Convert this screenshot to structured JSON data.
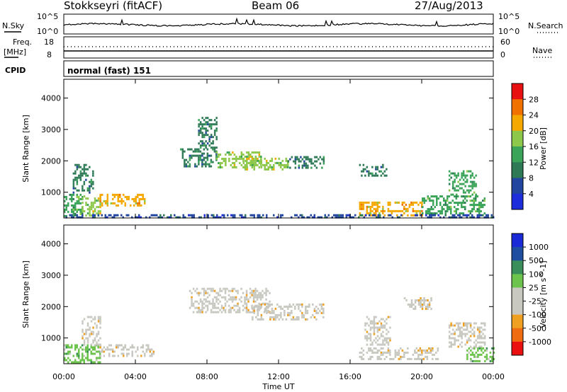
{
  "header": {
    "station": "Stokkseyri (fitACF)",
    "beam": "Beam 06",
    "date": "27/Aug/2013"
  },
  "panels": {
    "nsky_label": "N.Sky",
    "nsky_ticks": [
      "10^5",
      "10^0"
    ],
    "nsearch_label": "N.Search",
    "nsearch_ticks": [
      "10^5",
      "10^0"
    ],
    "freq_label_1": "Freq.",
    "freq_label_2": "[MHz]",
    "freq_ticks": [
      "18",
      "8"
    ],
    "nave_label": "Nave",
    "nave_ticks": [
      "60",
      "0"
    ],
    "cpid_label": "CPID",
    "cpid_value": "normal (fast) 151"
  },
  "colors": {
    "power_scale": [
      "#1e2ddc",
      "#22469f",
      "#2e7a56",
      "#3aa458",
      "#8dc84a",
      "#f5a800",
      "#f07000",
      "#e81010"
    ],
    "velocity_scale": [
      "#ea1010",
      "#f06c10",
      "#f0a020",
      "#c8c8c0",
      "#c8c8c0",
      "#6cc44c",
      "#3a8e5a",
      "#1e4ea0",
      "#1a2ad6"
    ]
  },
  "chart_data": [
    {
      "type": "heatmap",
      "title": "",
      "ylabel": "Slant Range [km]",
      "xlabel": "",
      "x_ticks": [
        "00:00",
        "04:00",
        "08:00",
        "12:00",
        "16:00",
        "20:00",
        "00:00"
      ],
      "xlim_hours": [
        0,
        24
      ],
      "ylim_km": [
        180,
        4600
      ],
      "y_ticks": [
        1000,
        2000,
        3000,
        4000
      ],
      "colorbar": {
        "label": "Power [dB]",
        "ticks": [
          "28",
          "24",
          "20",
          "16",
          "12",
          "8",
          "4"
        ],
        "range": [
          0,
          30
        ]
      },
      "regions": [
        {
          "t0": 0.0,
          "t1": 1.0,
          "r0": 250,
          "r1": 950,
          "value": 14
        },
        {
          "t0": 1.0,
          "t1": 2.0,
          "r0": 250,
          "r1": 900,
          "value": 16
        },
        {
          "t0": 2.0,
          "t1": 4.5,
          "r0": 600,
          "r1": 950,
          "value": 20
        },
        {
          "t0": 0.5,
          "t1": 1.6,
          "r0": 1000,
          "r1": 1900,
          "value": 10
        },
        {
          "t0": 6.5,
          "t1": 8.5,
          "r0": 1800,
          "r1": 2400,
          "value": 8
        },
        {
          "t0": 7.5,
          "t1": 8.5,
          "r0": 2400,
          "r1": 3400,
          "value": 8
        },
        {
          "t0": 8.5,
          "t1": 11.0,
          "r0": 1800,
          "r1": 2300,
          "value": 16
        },
        {
          "t0": 10.0,
          "t1": 12.5,
          "r0": 1700,
          "r1": 2100,
          "value": 18
        },
        {
          "t0": 12.5,
          "t1": 14.5,
          "r0": 1750,
          "r1": 2150,
          "value": 8
        },
        {
          "t0": 16.5,
          "t1": 18.0,
          "r0": 1500,
          "r1": 1900,
          "value": 10
        },
        {
          "t0": 16.5,
          "t1": 20.0,
          "r0": 250,
          "r1": 700,
          "value": 22
        },
        {
          "t0": 20.0,
          "t1": 23.5,
          "r0": 350,
          "r1": 900,
          "value": 14
        },
        {
          "t0": 21.5,
          "t1": 23.0,
          "r0": 900,
          "r1": 1700,
          "value": 12
        },
        {
          "t0": 0.0,
          "t1": 24.0,
          "r0": 180,
          "r1": 300,
          "value": 6
        }
      ]
    },
    {
      "type": "heatmap",
      "title": "",
      "ylabel": "Slant Range [km]",
      "xlabel": "Time UT",
      "x_ticks": [
        "00:00",
        "04:00",
        "08:00",
        "12:00",
        "16:00",
        "20:00",
        "00:00"
      ],
      "xlim_hours": [
        0,
        24
      ],
      "ylim_km": [
        180,
        4600
      ],
      "y_ticks": [
        1000,
        2000,
        3000,
        4000
      ],
      "colorbar": {
        "label": "Velocity [m s^-1]",
        "ticks": [
          "1000",
          "500",
          "100",
          "25",
          "-25",
          "-100",
          "-500",
          "-1000"
        ],
        "range": [
          -1200,
          1200
        ]
      },
      "regions": [
        {
          "t0": 0.0,
          "t1": 2.0,
          "r0": 250,
          "r1": 800,
          "value": 300
        },
        {
          "t0": 1.0,
          "t1": 2.0,
          "r0": 800,
          "r1": 1700,
          "value": -300
        },
        {
          "t0": 2.0,
          "t1": 5.0,
          "r0": 400,
          "r1": 800,
          "value": 0
        },
        {
          "t0": 7.0,
          "t1": 11.5,
          "r0": 1800,
          "r1": 2600,
          "value": 0
        },
        {
          "t0": 10.5,
          "t1": 14.5,
          "r0": 1600,
          "r1": 2100,
          "value": 0
        },
        {
          "t0": 16.5,
          "t1": 21.0,
          "r0": 300,
          "r1": 700,
          "value": -250
        },
        {
          "t0": 16.8,
          "t1": 18.2,
          "r0": 800,
          "r1": 1700,
          "value": -400
        },
        {
          "t0": 21.5,
          "t1": 23.5,
          "r0": 700,
          "r1": 1500,
          "value": -300
        },
        {
          "t0": 22.5,
          "t1": 24.0,
          "r0": 250,
          "r1": 700,
          "value": 250
        },
        {
          "t0": 19.0,
          "t1": 20.5,
          "r0": 1900,
          "r1": 2300,
          "value": 0
        }
      ]
    }
  ]
}
